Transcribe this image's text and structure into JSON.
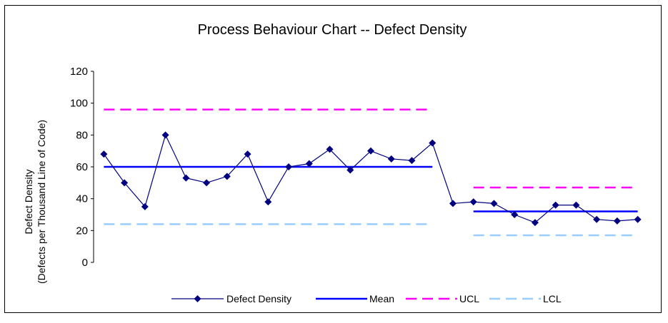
{
  "chart_data": {
    "type": "line",
    "title": "Process Behaviour Chart -- Defect Density",
    "ylabel_line1": "Defect Density",
    "ylabel_line2": "(Defects per Thousand Line of Code)",
    "ylim": [
      0,
      120
    ],
    "yticks": [
      0,
      20,
      40,
      60,
      80,
      100,
      120
    ],
    "grid": false,
    "legend_position": "bottom",
    "colors": {
      "defect_density": "#000080",
      "mean": "#0000ff",
      "ucl": "#ff00ff",
      "lcl": "#99ccff"
    },
    "defect_density": [
      68,
      50,
      35,
      80,
      53,
      50,
      54,
      68,
      38,
      60,
      62,
      71,
      58,
      70,
      65,
      64,
      75,
      37,
      38,
      37,
      30,
      25,
      36,
      36,
      27,
      26,
      27
    ],
    "phases": [
      {
        "start": 1,
        "end": 17,
        "mean": 60,
        "ucl": 96,
        "lcl": 24
      },
      {
        "start": 19,
        "end": 27,
        "mean": 32,
        "ucl": 47,
        "lcl": 17
      }
    ],
    "series": [
      {
        "name": "Defect Density"
      },
      {
        "name": "Mean"
      },
      {
        "name": "UCL"
      },
      {
        "name": "LCL"
      }
    ]
  }
}
